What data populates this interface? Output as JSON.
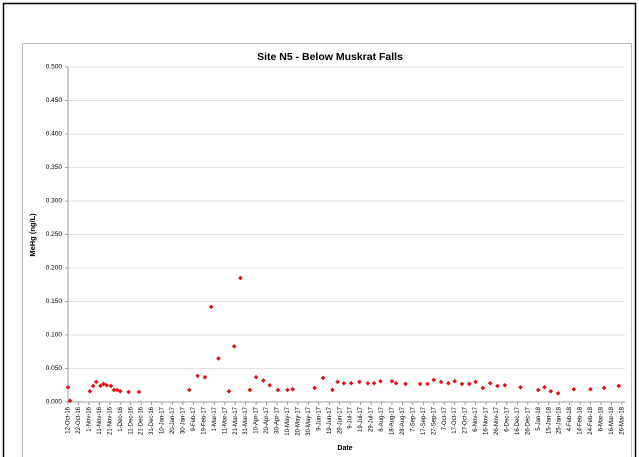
{
  "chart_data": {
    "type": "scatter",
    "title": "Site N5 -  Below Muskrat Falls",
    "x_label": "Date",
    "y_label": "MeHg (ng/L)",
    "color": "#e01010",
    "grid": true,
    "x": [
      "2016-10-12",
      "2016-10-14",
      "2016-11-02",
      "2016-11-05",
      "2016-11-08",
      "2016-11-12",
      "2016-11-15",
      "2016-11-18",
      "2016-11-22",
      "2016-11-25",
      "2016-11-28",
      "2016-12-01",
      "2016-12-09",
      "2016-12-19",
      "2017-02-05",
      "2017-02-13",
      "2017-02-20",
      "2017-02-26",
      "2017-03-05",
      "2017-03-15",
      "2017-03-20",
      "2017-03-26",
      "2017-04-04",
      "2017-04-10",
      "2017-04-17",
      "2017-04-23",
      "2017-05-01",
      "2017-05-10",
      "2017-05-15",
      "2017-06-05",
      "2017-06-13",
      "2017-06-22",
      "2017-06-27",
      "2017-07-03",
      "2017-07-10",
      "2017-07-18",
      "2017-07-26",
      "2017-08-01",
      "2017-08-07",
      "2017-08-18",
      "2017-08-22",
      "2017-08-31",
      "2017-09-14",
      "2017-09-21",
      "2017-09-27",
      "2017-10-04",
      "2017-10-11",
      "2017-10-17",
      "2017-10-24",
      "2017-10-31",
      "2017-11-06",
      "2017-11-13",
      "2017-11-20",
      "2017-11-27",
      "2017-12-04",
      "2017-12-19",
      "2018-01-05",
      "2018-01-11",
      "2018-01-17",
      "2018-01-24",
      "2018-02-08",
      "2018-02-24",
      "2018-03-09",
      "2018-03-23"
    ],
    "values": [
      0.022,
      0.002,
      0.016,
      0.024,
      0.03,
      0.024,
      0.027,
      0.025,
      0.024,
      0.018,
      0.018,
      0.016,
      0.015,
      0.015,
      0.018,
      0.039,
      0.037,
      0.142,
      0.065,
      0.016,
      0.083,
      0.185,
      0.018,
      0.037,
      0.032,
      0.025,
      0.018,
      0.018,
      0.019,
      0.021,
      0.036,
      0.018,
      0.03,
      0.028,
      0.028,
      0.03,
      0.028,
      0.028,
      0.031,
      0.031,
      0.028,
      0.027,
      0.027,
      0.027,
      0.033,
      0.03,
      0.028,
      0.031,
      0.027,
      0.027,
      0.03,
      0.021,
      0.028,
      0.024,
      0.025,
      0.022,
      0.018,
      0.022,
      0.016,
      0.013,
      0.019,
      0.019,
      0.021,
      0.024
    ],
    "xlim": [
      "2016-10-12",
      "2018-03-29"
    ],
    "ylim": [
      0,
      0.5
    ],
    "yticks": [
      {
        "value": 0,
        "label": "0.000"
      },
      {
        "value": 0.05,
        "label": "0.050"
      },
      {
        "value": 0.1,
        "label": "0.100"
      },
      {
        "value": 0.15,
        "label": "0.150"
      },
      {
        "value": 0.2,
        "label": "0.200"
      },
      {
        "value": 0.25,
        "label": "0.250"
      },
      {
        "value": 0.3,
        "label": "0.300"
      },
      {
        "value": 0.35,
        "label": "0.350"
      },
      {
        "value": 0.4,
        "label": "0.400"
      },
      {
        "value": 0.45,
        "label": "0.450"
      },
      {
        "value": 0.5,
        "label": "0.500"
      }
    ],
    "xticks": [
      {
        "value": "2016-10-12",
        "label": "12-Oct-16"
      },
      {
        "value": "2016-10-22",
        "label": "22-Oct-16"
      },
      {
        "value": "2016-11-01",
        "label": "1-Nov-16"
      },
      {
        "value": "2016-11-11",
        "label": "11-Nov-16"
      },
      {
        "value": "2016-11-21",
        "label": "21-Nov-16"
      },
      {
        "value": "2016-12-01",
        "label": "1-Dec-16"
      },
      {
        "value": "2016-12-11",
        "label": "11-Dec-16"
      },
      {
        "value": "2016-12-21",
        "label": "21-Dec-16"
      },
      {
        "value": "2016-12-31",
        "label": "31-Dec-16"
      },
      {
        "value": "2017-01-10",
        "label": "10-Jan-17"
      },
      {
        "value": "2017-01-20",
        "label": "20-Jan-17"
      },
      {
        "value": "2017-01-30",
        "label": "30-Jan-17"
      },
      {
        "value": "2017-02-09",
        "label": "9-Feb-17"
      },
      {
        "value": "2017-02-19",
        "label": "19-Feb-17"
      },
      {
        "value": "2017-03-01",
        "label": "1-Mar-17"
      },
      {
        "value": "2017-03-11",
        "label": "11-Mar-17"
      },
      {
        "value": "2017-03-21",
        "label": "21-Mar-17"
      },
      {
        "value": "2017-03-31",
        "label": "31-Mar-17"
      },
      {
        "value": "2017-04-10",
        "label": "10-Apr-17"
      },
      {
        "value": "2017-04-20",
        "label": "20-Apr-17"
      },
      {
        "value": "2017-04-30",
        "label": "30-Apr-17"
      },
      {
        "value": "2017-05-10",
        "label": "10-May-17"
      },
      {
        "value": "2017-05-20",
        "label": "20-May-17"
      },
      {
        "value": "2017-05-30",
        "label": "30-May-17"
      },
      {
        "value": "2017-06-09",
        "label": "9-Jun-17"
      },
      {
        "value": "2017-06-19",
        "label": "19-Jun-17"
      },
      {
        "value": "2017-06-29",
        "label": "29-Jun-17"
      },
      {
        "value": "2017-07-09",
        "label": "9-Jul-17"
      },
      {
        "value": "2017-07-19",
        "label": "19-Jul-17"
      },
      {
        "value": "2017-07-29",
        "label": "29-Jul-17"
      },
      {
        "value": "2017-08-08",
        "label": "8-Aug-17"
      },
      {
        "value": "2017-08-18",
        "label": "18-Aug-17"
      },
      {
        "value": "2017-08-28",
        "label": "28-Aug-17"
      },
      {
        "value": "2017-09-07",
        "label": "7-Sep-17"
      },
      {
        "value": "2017-09-17",
        "label": "17-Sep-17"
      },
      {
        "value": "2017-09-27",
        "label": "27-Sep-17"
      },
      {
        "value": "2017-10-07",
        "label": "7-Oct-17"
      },
      {
        "value": "2017-10-17",
        "label": "17-Oct-17"
      },
      {
        "value": "2017-10-27",
        "label": "27-Oct-17"
      },
      {
        "value": "2017-11-06",
        "label": "6-Nov-17"
      },
      {
        "value": "2017-11-16",
        "label": "16-Nov-17"
      },
      {
        "value": "2017-11-26",
        "label": "26-Nov-17"
      },
      {
        "value": "2017-12-06",
        "label": "6-Dec-17"
      },
      {
        "value": "2017-12-16",
        "label": "16-Dec-17"
      },
      {
        "value": "2017-12-26",
        "label": "26-Dec-17"
      },
      {
        "value": "2018-01-05",
        "label": "5-Jan-18"
      },
      {
        "value": "2018-01-15",
        "label": "15-Jan-18"
      },
      {
        "value": "2018-01-25",
        "label": "25-Jan-18"
      },
      {
        "value": "2018-02-04",
        "label": "4-Feb-18"
      },
      {
        "value": "2018-02-14",
        "label": "14-Feb-18"
      },
      {
        "value": "2018-02-24",
        "label": "24-Feb-18"
      },
      {
        "value": "2018-03-06",
        "label": "6-Mar-18"
      },
      {
        "value": "2018-03-16",
        "label": "16-Mar-18"
      },
      {
        "value": "2018-03-26",
        "label": "26-Mar-18"
      }
    ]
  }
}
